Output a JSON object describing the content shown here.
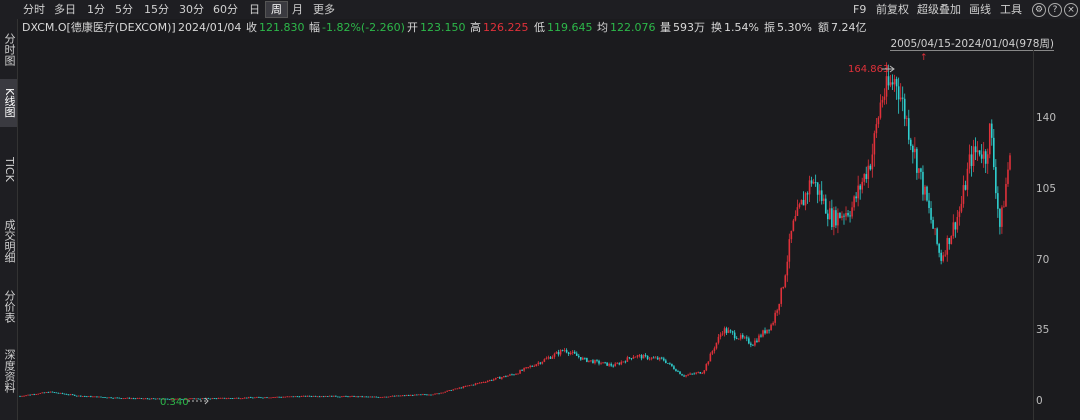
{
  "toolbar": {
    "periods": [
      "分时",
      "多日",
      "1分",
      "5分",
      "15分",
      "30分",
      "60分",
      "日",
      "周",
      "月",
      "更多"
    ],
    "active": "周",
    "right": [
      "F9",
      "前复权",
      "超级叠加",
      "画线",
      "工具"
    ],
    "settings_icon": "gear-icon",
    "help_icon": "help-icon",
    "close_icon": "close-icon"
  },
  "info": {
    "name": "DXCM.O[德康医疗(DEXCOM)]",
    "date": "2024/01/04",
    "close_label": "收",
    "close_value": "121.830",
    "change_label": "幅",
    "change_value": "-1.82%(-2.260)",
    "open_label": "开",
    "open_value": "123.150",
    "high_label": "高",
    "high_value": "126.225",
    "low_label": "低",
    "low_value": "119.645",
    "avg_label": "均",
    "avg_value": "122.076",
    "volume_label": "量",
    "volume_value": "593万",
    "turnover_label": "换",
    "turnover_value": "1.54%",
    "amplitude_label": "振",
    "amplitude_value": "5.30%",
    "amount_label": "额",
    "amount_value": "7.24亿"
  },
  "sidebar": {
    "items": [
      "分时图",
      "K线图",
      "TICK",
      "成交明细",
      "分价表",
      "深度资料"
    ],
    "active": "K线图"
  },
  "chart": {
    "range_label": "2005/04/15-2024/01/04(978周)",
    "max_label": "164.863",
    "min_label": "0.340",
    "y_ticks": [
      "140",
      "105",
      "70",
      "35",
      "0"
    ],
    "colors": {
      "up": "#e0313a",
      "down": "#2fd0d0",
      "max_label": "#e0313a",
      "min_label": "#2db84a"
    }
  },
  "chart_data": {
    "type": "candlestick",
    "x_range": [
      "2005/04/15",
      "2024/01/04"
    ],
    "ylim": [
      0,
      170
    ],
    "y_ticks": [
      0,
      35,
      70,
      105,
      140
    ],
    "max": 164.863,
    "min": 0.34,
    "close_path": [
      [
        0,
        2
      ],
      [
        0.03,
        4
      ],
      [
        0.06,
        2
      ],
      [
        0.1,
        1
      ],
      [
        0.15,
        0.4
      ],
      [
        0.22,
        1
      ],
      [
        0.3,
        2
      ],
      [
        0.36,
        1.5
      ],
      [
        0.42,
        3
      ],
      [
        0.46,
        8
      ],
      [
        0.5,
        13
      ],
      [
        0.53,
        20
      ],
      [
        0.55,
        25
      ],
      [
        0.57,
        20
      ],
      [
        0.6,
        17
      ],
      [
        0.62,
        22
      ],
      [
        0.65,
        20
      ],
      [
        0.67,
        12
      ],
      [
        0.69,
        14
      ],
      [
        0.7,
        25
      ],
      [
        0.71,
        35
      ],
      [
        0.74,
        28
      ],
      [
        0.76,
        38
      ],
      [
        0.77,
        55
      ],
      [
        0.78,
        85
      ],
      [
        0.8,
        110
      ],
      [
        0.82,
        90
      ],
      [
        0.84,
        95
      ],
      [
        0.86,
        120
      ],
      [
        0.87,
        150
      ],
      [
        0.885,
        160
      ],
      [
        0.9,
        130
      ],
      [
        0.92,
        90
      ],
      [
        0.93,
        70
      ],
      [
        0.95,
        95
      ],
      [
        0.96,
        120
      ],
      [
        0.97,
        125
      ],
      [
        0.975,
        120
      ],
      [
        0.98,
        135
      ],
      [
        0.985,
        110
      ],
      [
        0.99,
        85
      ],
      [
        1.0,
        122
      ]
    ]
  }
}
